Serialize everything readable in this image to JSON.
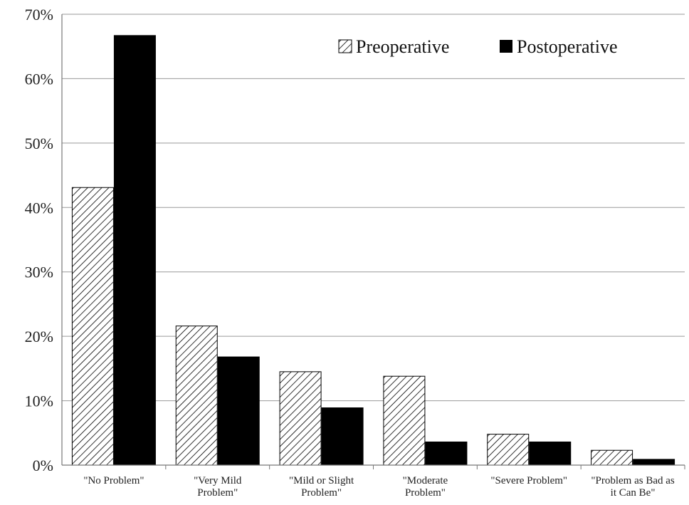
{
  "chart_data": {
    "type": "bar",
    "title": "",
    "xlabel": "",
    "ylabel": "",
    "ylim": [
      0,
      70
    ],
    "y_tick_step": 10,
    "y_tick_labels": [
      "0%",
      "10%",
      "20%",
      "30%",
      "40%",
      "50%",
      "60%",
      "70%"
    ],
    "grid": true,
    "legend_position": "top-right",
    "categories": [
      [
        "\"No Problem\""
      ],
      [
        "\"Very Mild",
        "Problem\""
      ],
      [
        "\"Mild or Slight",
        "Problem\""
      ],
      [
        "\"Moderate",
        "Problem\""
      ],
      [
        "\"Severe Problem\""
      ],
      [
        "\"Problem as Bad as",
        "it Can Be\""
      ]
    ],
    "series": [
      {
        "name": "Preoperative",
        "fill": "hatched",
        "color": "#000000",
        "values": [
          43.1,
          21.6,
          14.5,
          13.8,
          4.8,
          2.3
        ]
      },
      {
        "name": "Postoperative",
        "fill": "solid",
        "color": "#000000",
        "values": [
          66.7,
          16.8,
          8.9,
          3.6,
          3.6,
          0.9
        ]
      }
    ]
  }
}
